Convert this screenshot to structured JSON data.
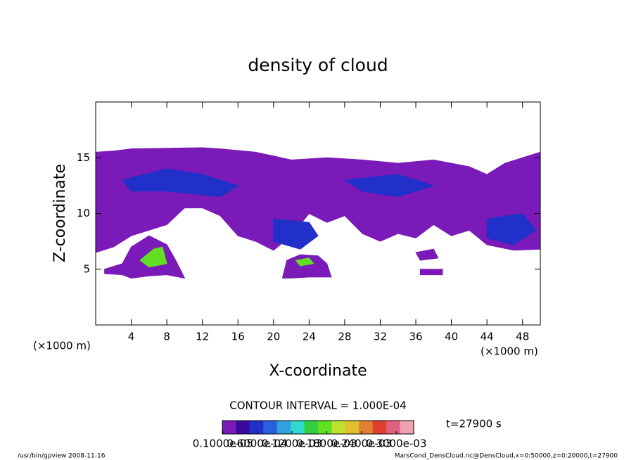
{
  "chart_data": {
    "type": "contour",
    "title": "density of cloud",
    "xlabel": "X-coordinate",
    "ylabel": "Z-coordinate",
    "xunit_left": "(×1000 m)",
    "xunit_right": "(×1000 m)",
    "xlim": [
      0,
      50
    ],
    "ylim": [
      0,
      20
    ],
    "xticks": [
      4,
      8,
      12,
      16,
      20,
      24,
      28,
      32,
      36,
      40,
      44,
      48
    ],
    "yticks": [
      5,
      10,
      15
    ],
    "contour_interval": "CONTOUR INTERVAL = 1.000E-04",
    "time": "t=27900 s",
    "footer_left": "/usr/bin/gpview  2008-11-16",
    "footer_right": "MarsCond_DensCloud.nc@DensCloud,x=0:50000,z=0:20000,t=27900",
    "clim": [
      0,
      0.00033
    ],
    "colorbar_colors": [
      "#7a1ab8",
      "#3a0aa0",
      "#2030c8",
      "#2a60e0",
      "#30a0e0",
      "#30d8d0",
      "#30d040",
      "#60e020",
      "#c0e030",
      "#e0c030",
      "#e08030",
      "#e04030",
      "#e06080",
      "#f0a0b0"
    ],
    "colorbar_ticks": [
      {
        "value": 1e-06,
        "label": "0.1000e-05"
      },
      {
        "value": 6e-05,
        "label": "0.6000e-04"
      },
      {
        "value": 0.00012,
        "label": "0.1200e-03"
      },
      {
        "value": 0.00018,
        "label": "0.1800e-03"
      },
      {
        "value": 0.00024,
        "label": "0.2400e-03"
      },
      {
        "value": 0.0003,
        "label": "0.3000e-03"
      }
    ],
    "regions": [
      {
        "level": 2e-05,
        "x": [
          0,
          2,
          4,
          12,
          14,
          18,
          22,
          26,
          30,
          34,
          38,
          42,
          44,
          46,
          50,
          50,
          47,
          44,
          42,
          40,
          38,
          36,
          34,
          32,
          30,
          28,
          26,
          24,
          22,
          20,
          18,
          16,
          14,
          12,
          10,
          8,
          6,
          4,
          2,
          0
        ],
        "z": [
          15.5,
          15.6,
          15.8,
          15.9,
          15.8,
          15.5,
          14.8,
          15,
          14.8,
          14.5,
          14.8,
          14.2,
          13.5,
          14.5,
          15.5,
          6.8,
          6.7,
          7.2,
          8.5,
          8,
          9,
          7.8,
          8.2,
          7.5,
          8.2,
          9.8,
          9.2,
          10,
          8,
          6.7,
          7.5,
          8,
          9.8,
          10.5,
          10.5,
          9,
          8.5,
          8,
          7,
          6.5
        ]
      },
      {
        "level": 2e-05,
        "x": [
          1,
          3,
          4,
          6,
          8,
          9,
          10,
          8,
          6,
          4,
          3,
          1
        ],
        "z": [
          5,
          5.5,
          7,
          8,
          7.2,
          5.8,
          4.2,
          4.5,
          4.4,
          4.2,
          4.5,
          4.6
        ]
      },
      {
        "level": 2e-05,
        "x": [
          21,
          21.5,
          23,
          25,
          26,
          26.5,
          24,
          22
        ],
        "z": [
          4.2,
          5.8,
          6.3,
          6.2,
          5.5,
          4.3,
          4.3,
          4.2
        ]
      },
      {
        "level": 2e-05,
        "x": [
          36,
          38,
          38.5,
          36.5
        ],
        "z": [
          6.5,
          6.8,
          6,
          5.8
        ]
      },
      {
        "level": 2e-05,
        "x": [
          36.5,
          39,
          39,
          36.5
        ],
        "z": [
          5,
          5,
          4.5,
          4.5
        ]
      },
      {
        "level": 6e-05,
        "x": [
          3,
          8,
          12,
          16,
          14,
          8,
          4
        ],
        "z": [
          13,
          14,
          13.5,
          12.5,
          11.5,
          12,
          12
        ]
      },
      {
        "level": 6e-05,
        "x": [
          20,
          24,
          25,
          23,
          20
        ],
        "z": [
          9.5,
          9.2,
          8,
          6.8,
          7.5
        ]
      },
      {
        "level": 6e-05,
        "x": [
          44,
          48,
          49.5,
          47,
          44
        ],
        "z": [
          9.5,
          10,
          8.5,
          7.2,
          7.8
        ]
      },
      {
        "level": 6e-05,
        "x": [
          28,
          34,
          38,
          34,
          30
        ],
        "z": [
          13,
          13.5,
          12.5,
          11.5,
          12
        ]
      },
      {
        "level": 0.00018,
        "x": [
          5,
          6.5,
          7.5,
          8,
          6
        ],
        "z": [
          5.8,
          6.8,
          7,
          5.5,
          5.2
        ]
      },
      {
        "level": 0.00018,
        "x": [
          22.5,
          24,
          24.5,
          23
        ],
        "z": [
          5.8,
          6,
          5.5,
          5.3
        ]
      }
    ]
  }
}
